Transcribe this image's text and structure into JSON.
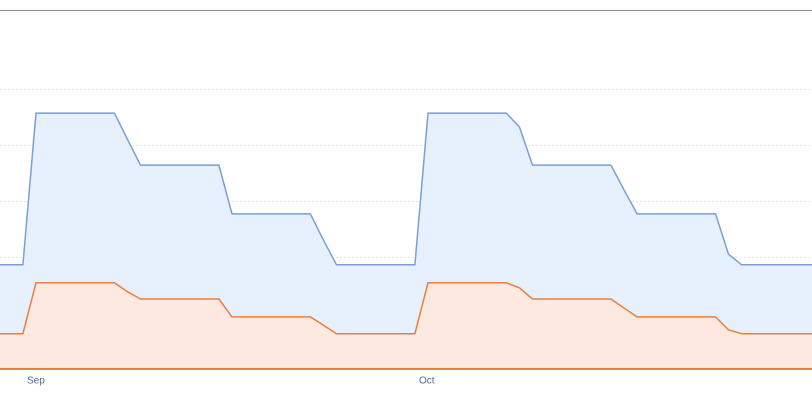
{
  "chart_data": {
    "type": "area",
    "categories": [
      null,
      null,
      null,
      "Sep",
      null,
      null,
      null,
      null,
      null,
      null,
      null,
      null,
      null,
      null,
      null,
      null,
      null,
      null,
      null,
      null,
      null,
      null,
      null,
      null,
      null,
      null,
      null,
      null,
      null,
      null,
      null,
      null,
      null,
      "Oct",
      null,
      null,
      null,
      null,
      null,
      null,
      null,
      null,
      null,
      null,
      null,
      null,
      null,
      null,
      null,
      null,
      null,
      null,
      null,
      null,
      null,
      null,
      null,
      null,
      null,
      null,
      null,
      null,
      null,
      null
    ],
    "series": [
      {
        "color": "#7b9fd4",
        "fill": "#e7f0fd",
        "values": [
          1.86,
          1.86,
          1.86,
          4.57,
          4.57,
          4.57,
          4.57,
          4.57,
          4.57,
          4.57,
          4.1,
          3.64,
          3.64,
          3.64,
          3.64,
          3.64,
          3.64,
          3.64,
          2.77,
          2.77,
          2.77,
          2.77,
          2.77,
          2.77,
          2.77,
          2.3,
          1.86,
          1.86,
          1.86,
          1.86,
          1.86,
          1.86,
          1.86,
          4.57,
          4.57,
          4.57,
          4.57,
          4.57,
          4.57,
          4.57,
          4.32,
          3.64,
          3.64,
          3.64,
          3.64,
          3.64,
          3.64,
          3.64,
          3.2,
          2.77,
          2.77,
          2.77,
          2.77,
          2.77,
          2.77,
          2.77,
          2.05,
          1.86,
          1.86,
          1.86,
          1.86,
          1.86,
          1.86,
          1.86
        ]
      },
      {
        "color": "#e8803f",
        "fill": "#fde9e0",
        "values": [
          0.63,
          0.63,
          0.63,
          1.54,
          1.54,
          1.54,
          1.54,
          1.54,
          1.54,
          1.54,
          1.38,
          1.25,
          1.25,
          1.25,
          1.25,
          1.25,
          1.25,
          1.25,
          0.93,
          0.93,
          0.93,
          0.93,
          0.93,
          0.93,
          0.93,
          0.78,
          0.63,
          0.63,
          0.63,
          0.63,
          0.63,
          0.63,
          0.63,
          1.54,
          1.54,
          1.54,
          1.54,
          1.54,
          1.54,
          1.54,
          1.45,
          1.25,
          1.25,
          1.25,
          1.25,
          1.25,
          1.25,
          1.25,
          1.09,
          0.93,
          0.93,
          0.93,
          0.93,
          0.93,
          0.93,
          0.93,
          0.7,
          0.63,
          0.63,
          0.63,
          0.63,
          0.63,
          0.63,
          0.63
        ]
      }
    ],
    "ylim": [
      0,
      6.41
    ],
    "yticks": [
      0,
      1,
      2,
      3,
      4,
      5
    ],
    "grid": true
  }
}
